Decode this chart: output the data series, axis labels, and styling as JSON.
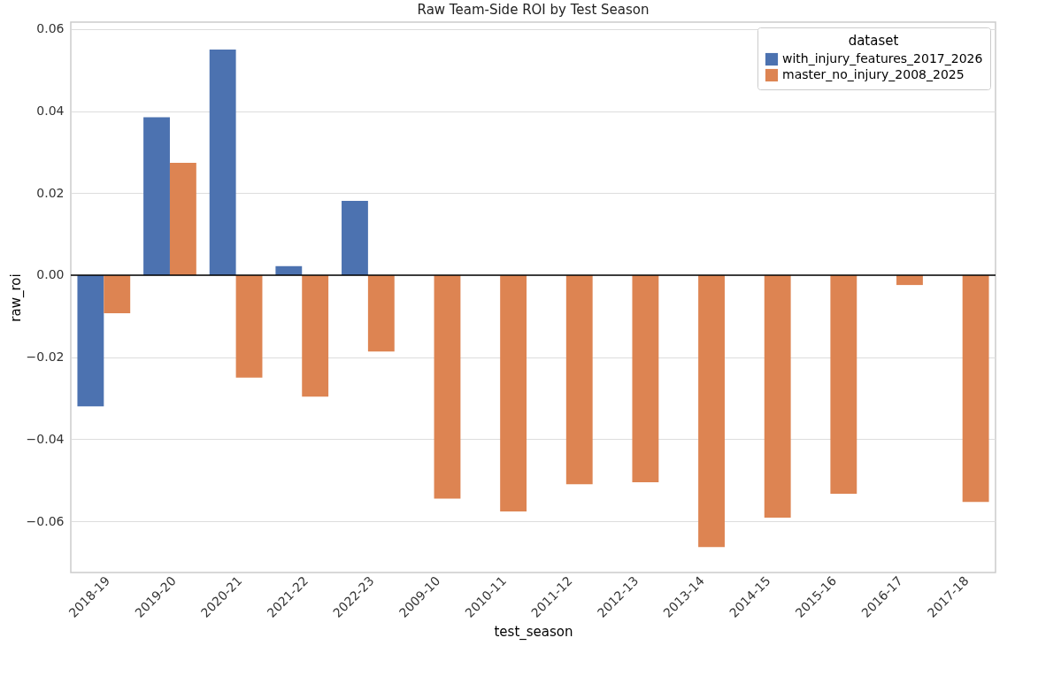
{
  "chart_data": {
    "type": "bar",
    "title": "Raw Team-Side ROI by Test Season",
    "xlabel": "test_season",
    "ylabel": "raw_roi",
    "legend_title": "dataset",
    "categories": [
      "2018-19",
      "2019-20",
      "2020-21",
      "2021-22",
      "2022-23",
      "2009-10",
      "2010-11",
      "2011-12",
      "2012-13",
      "2013-14",
      "2014-15",
      "2015-16",
      "2016-17",
      "2017-18"
    ],
    "series": [
      {
        "name": "with_injury_features_2017_2026",
        "color": "#4c72b0",
        "values": [
          -0.032,
          0.0385,
          0.055,
          0.0022,
          0.0181,
          null,
          null,
          null,
          null,
          null,
          null,
          null,
          null,
          null
        ]
      },
      {
        "name": "master_no_injury_2008_2025",
        "color": "#dd8452",
        "values": [
          -0.0093,
          0.0274,
          -0.025,
          -0.0296,
          -0.0186,
          -0.0545,
          -0.0576,
          -0.051,
          -0.0505,
          -0.0663,
          -0.0591,
          -0.0533,
          -0.0024,
          -0.0553
        ]
      }
    ],
    "ylim": [
      -0.0725,
      0.0617
    ],
    "yticks": [
      -0.06,
      -0.04,
      -0.02,
      {
        "value": 0,
        "label": "0.00"
      },
      0.02,
      0.04,
      0.06
    ],
    "ref_lines": [
      {
        "axis": "y",
        "value": 0,
        "color": "#000000"
      }
    ],
    "grid": "y",
    "legend": "top right"
  }
}
